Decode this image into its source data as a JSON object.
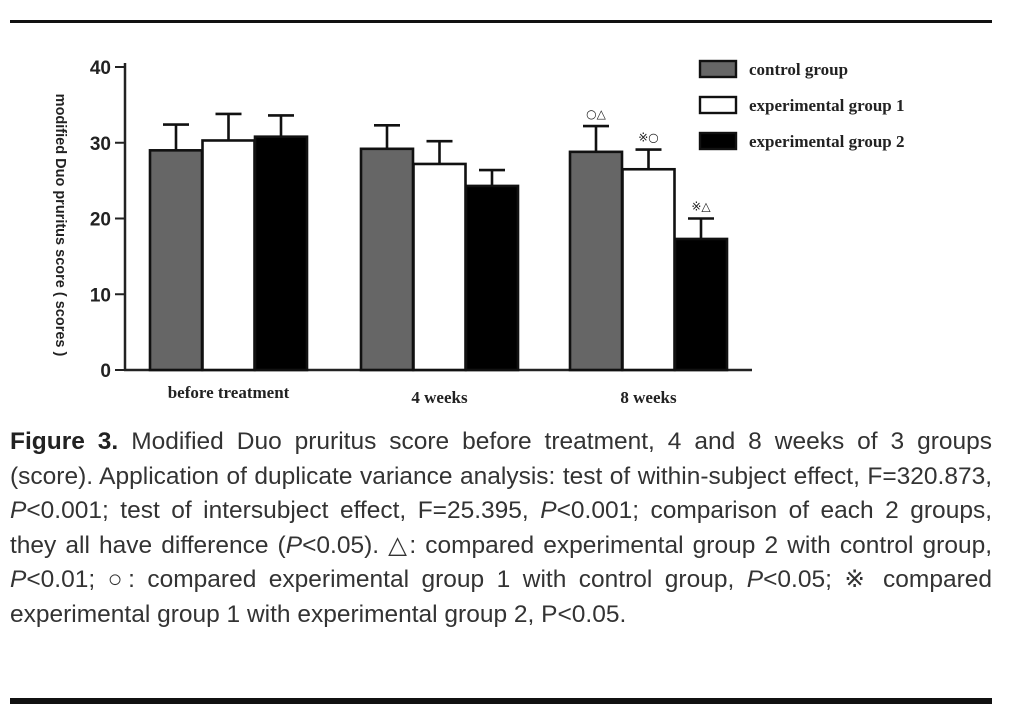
{
  "chart_data": {
    "type": "bar",
    "ylabel": "modified Duo pruritus score ( scores )",
    "ylim": [
      0,
      40
    ],
    "yticks": [
      0,
      10,
      20,
      30,
      40
    ],
    "categories": [
      "before treatment",
      "4 weeks",
      "8 weeks"
    ],
    "series": [
      {
        "name": "control group",
        "color": "#666666",
        "values": [
          29,
          29.2,
          28.8
        ],
        "errors": [
          3.4,
          3.1,
          3.4
        ]
      },
      {
        "name": "experimental group 1",
        "color": "#ffffff",
        "values": [
          30.3,
          27.2,
          26.5
        ],
        "errors": [
          3.5,
          3.0,
          2.6
        ]
      },
      {
        "name": "experimental group 2",
        "color": "#000000",
        "values": [
          30.8,
          24.3,
          17.3
        ],
        "errors": [
          2.8,
          2.1,
          2.7
        ]
      }
    ],
    "annotations": [
      {
        "category": "8 weeks",
        "series": "control group",
        "text": "○△"
      },
      {
        "category": "8 weeks",
        "series": "experimental group 1",
        "text": "※○"
      },
      {
        "category": "8 weeks",
        "series": "experimental group 2",
        "text": "※△"
      }
    ],
    "legend_position": "top-right",
    "grid": false
  },
  "caption": {
    "label": "Figure 3.",
    "p1": " Modified Duo pruritus score before treatment, 4 and 8 weeks of 3 groups (score). Application of duplicate variance analysis: test of within-subject effect, F=320.873, ",
    "P": "P",
    "p2": "<0.001; test of intersubject effect, F=25.395, ",
    "p3": "<0.001; comparison of each 2 groups, they all have difference (",
    "p4": "<0.05). ",
    "sym_triangle": "△",
    "p5": ": compared experimental group 2 with control group, ",
    "p6": "<0.01; ",
    "sym_circle": "○",
    "p7": ": compared experimental group 1 with control group, ",
    "p8": "<0.05; ",
    "sym_star": "※",
    "p9": " compared experimental group 1 with experimental group 2, P<0.05."
  }
}
